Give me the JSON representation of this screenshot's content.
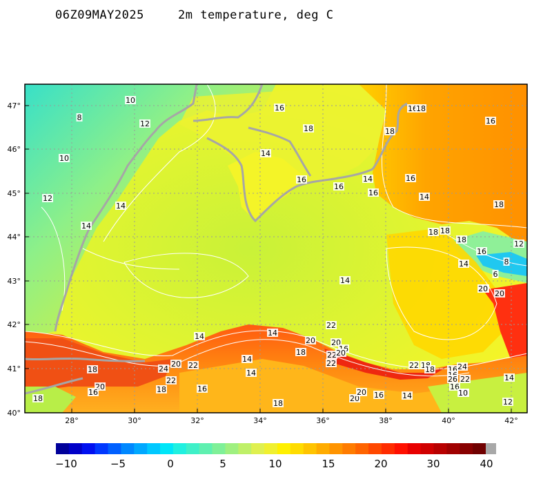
{
  "header": {
    "timestamp": "06Z09MAY2025",
    "variable": "2m temperature, deg C"
  },
  "map": {
    "lat_ticks": [
      "40°",
      "41°",
      "42°",
      "43°",
      "44°",
      "45°",
      "46°",
      "47°"
    ],
    "lon_ticks": [
      "28°",
      "30°",
      "32°",
      "34°",
      "36°",
      "38°",
      "40°",
      "42°"
    ],
    "gridlines": true,
    "land_colors": {
      "cold": "#46e0c6",
      "mild": "#dff032",
      "warm": "#f7a21a",
      "hot": "#ea3a12",
      "sea": "#ecf42a",
      "sea_center": "#cdf23a",
      "coast": "#a6a6a6"
    }
  },
  "contour_labels": [
    "10",
    "8",
    "12",
    "10",
    "12",
    "14",
    "14",
    "16",
    "18",
    "14",
    "16",
    "16",
    "14",
    "16",
    "16",
    "18",
    "18",
    "16",
    "14",
    "16",
    "18",
    "18",
    "18",
    "18",
    "16",
    "12",
    "8",
    "14",
    "6",
    "14",
    "10",
    "20",
    "22",
    "14",
    "14",
    "20",
    "20",
    "16",
    "18",
    "14",
    "22",
    "20",
    "22",
    "18",
    "18",
    "16",
    "24",
    "22",
    "16",
    "20",
    "26",
    "16",
    "18",
    "20",
    "22",
    "16",
    "14",
    "20",
    "22",
    "24",
    "22",
    "18",
    "18",
    "20",
    "16",
    "14",
    "12",
    "10",
    "14",
    "18",
    "16",
    "20",
    "18"
  ],
  "colorbar": {
    "ticks": [
      "−10",
      "−5",
      "0",
      "5",
      "10",
      "15",
      "20",
      "30",
      "40"
    ],
    "colors": [
      "#00009a",
      "#0000c8",
      "#0010f0",
      "#0038ff",
      "#0060ff",
      "#0088ff",
      "#00a8ff",
      "#00c8ff",
      "#00e6f8",
      "#20f0e0",
      "#3ff0c8",
      "#5ff0b0",
      "#7ff098",
      "#9ff080",
      "#bff068",
      "#dff050",
      "#f0f030",
      "#fff000",
      "#ffdc00",
      "#ffc400",
      "#ffac00",
      "#ff9400",
      "#ff7c00",
      "#ff6400",
      "#ff4800",
      "#ff2c00",
      "#ff1000",
      "#e80000",
      "#d00000",
      "#b80000",
      "#a00000",
      "#880000",
      "#700000"
    ],
    "overflow_color": "#a8a8a8"
  }
}
